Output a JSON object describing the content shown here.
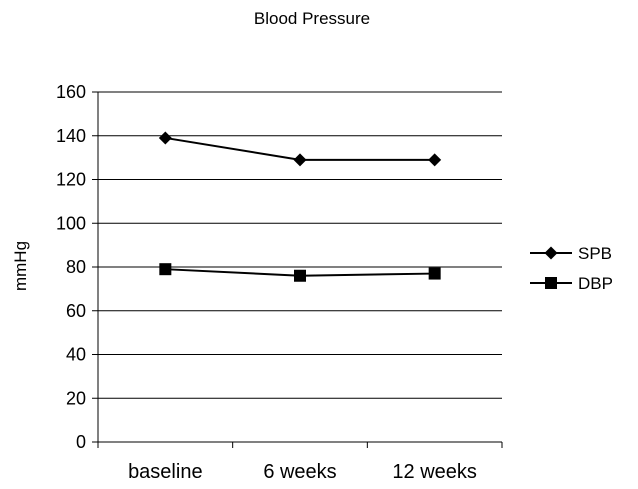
{
  "chart_data": {
    "type": "line",
    "title": "Blood Pressure",
    "xlabel": "",
    "ylabel": "mmHg",
    "categories": [
      "baseline",
      "6 weeks",
      "12 weeks"
    ],
    "ylim": [
      0,
      160
    ],
    "yticks": [
      0,
      20,
      40,
      60,
      80,
      100,
      120,
      140,
      160
    ],
    "grid": true,
    "legend_position": "right",
    "series": [
      {
        "name": "SPB",
        "values": [
          139,
          129,
          129
        ],
        "marker": "diamond",
        "color": "#000000"
      },
      {
        "name": "DBP",
        "values": [
          79,
          76,
          77
        ],
        "marker": "square",
        "color": "#000000"
      }
    ]
  }
}
